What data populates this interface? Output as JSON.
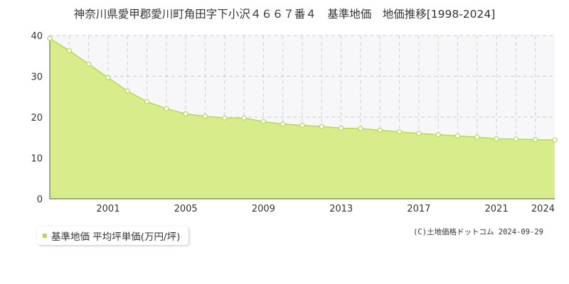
{
  "chart_data": {
    "type": "area",
    "title": "神奈川県愛甲郡愛川町角田字下小沢４６６７番４　基準地価　地価推移[1998-2024]",
    "series": [
      {
        "name": "基準地価 平均坪単価(万円/坪)",
        "color": "#d8ec8c",
        "line_color": "#b8d65a",
        "x": [
          1998,
          1999,
          2000,
          2001,
          2002,
          2003,
          2004,
          2005,
          2006,
          2007,
          2008,
          2009,
          2010,
          2011,
          2012,
          2013,
          2014,
          2015,
          2016,
          2017,
          2018,
          2019,
          2020,
          2021,
          2022,
          2023,
          2024
        ],
        "values": [
          39.3,
          36.3,
          33.0,
          29.7,
          26.4,
          23.8,
          22.1,
          20.8,
          20.2,
          19.8,
          19.8,
          18.9,
          18.3,
          18.0,
          17.7,
          17.3,
          17.2,
          16.8,
          16.4,
          16.0,
          15.7,
          15.4,
          15.1,
          14.7,
          14.6,
          14.5,
          14.4
        ]
      }
    ],
    "x_tick_labels": [
      "2001",
      "2005",
      "2009",
      "2013",
      "2017",
      "2021",
      "2024"
    ],
    "x_tick_values": [
      2001,
      2005,
      2009,
      2013,
      2017,
      2021,
      2024
    ],
    "y_ticks": [
      0,
      10,
      20,
      30,
      40
    ],
    "xlim": [
      1998,
      2024
    ],
    "ylim": [
      0,
      40
    ],
    "grid": true,
    "legend_position": "bottom-left"
  },
  "copyright": "(C)土地価格ドットコム 2024-09-29"
}
